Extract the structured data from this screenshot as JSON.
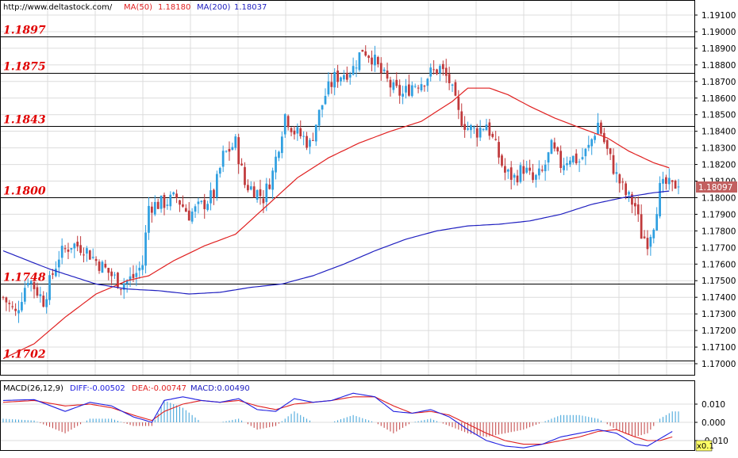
{
  "header": {
    "url": "http://www.deltastock.com/",
    "ma50_label": "MA(50)",
    "ma50_value": "1.18180",
    "ma200_label": "MA(200)",
    "ma200_value": "1.18037"
  },
  "macd_header": {
    "name": "MACD(26,12,9)",
    "diff": "DIFF:-0.00502",
    "dea": "DEA:-0.00747",
    "macd": "MACD:0.00490"
  },
  "colors": {
    "bull": "#2f9fe0",
    "bear": "#c0393b",
    "ma50": "#e02020",
    "ma200": "#2020c0",
    "level_text": "#e00000",
    "grid": "#dcdcdc",
    "price_box": "#c26060",
    "macd_diff": "#2020e0",
    "macd_dea": "#e02020"
  },
  "chart_data": [
    {
      "type": "candlestick",
      "title": "",
      "y_ticks": [
        "1.19100",
        "1.19000",
        "1.18900",
        "1.18800",
        "1.18700",
        "1.18600",
        "1.18500",
        "1.18400",
        "1.18300",
        "1.18200",
        "1.18100",
        "1.18000",
        "1.17900",
        "1.17800",
        "1.17700",
        "1.17600",
        "1.17500",
        "1.17400",
        "1.17300",
        "1.17200",
        "1.17100",
        "1.17000"
      ],
      "ylim": [
        1.1695,
        1.1915
      ],
      "current_price": "1.18097",
      "levels": [
        {
          "value": 1.1897,
          "label": "1.1897"
        },
        {
          "value": 1.1875,
          "label": "1.1875"
        },
        {
          "value": 1.1843,
          "label": "1.1843"
        },
        {
          "value": 1.18,
          "label": "1.1800"
        },
        {
          "value": 1.1748,
          "label": "1.1748"
        },
        {
          "value": 1.1702,
          "label": "1.1702"
        }
      ],
      "anchors_close": [
        [
          0,
          1.174
        ],
        [
          4,
          1.173
        ],
        [
          8,
          1.1752
        ],
        [
          13,
          1.1738
        ],
        [
          18,
          1.1765
        ],
        [
          22,
          1.1772
        ],
        [
          26,
          1.177
        ],
        [
          30,
          1.1762
        ],
        [
          34,
          1.1755
        ],
        [
          38,
          1.1748
        ],
        [
          42,
          1.1752
        ],
        [
          45,
          1.176
        ],
        [
          47,
          1.1795
        ],
        [
          52,
          1.1797
        ],
        [
          56,
          1.18
        ],
        [
          60,
          1.179
        ],
        [
          64,
          1.1795
        ],
        [
          68,
          1.1802
        ],
        [
          71,
          1.1825
        ],
        [
          75,
          1.1833
        ],
        [
          78,
          1.1808
        ],
        [
          81,
          1.1805
        ],
        [
          84,
          1.18
        ],
        [
          87,
          1.1815
        ],
        [
          91,
          1.185
        ],
        [
          94,
          1.184
        ],
        [
          97,
          1.1836
        ],
        [
          99,
          1.1832
        ],
        [
          101,
          1.1845
        ],
        [
          104,
          1.1862
        ],
        [
          107,
          1.1872
        ],
        [
          110,
          1.1875
        ],
        [
          113,
          1.1878
        ],
        [
          116,
          1.189
        ],
        [
          119,
          1.1885
        ],
        [
          122,
          1.1875
        ],
        [
          126,
          1.1865
        ],
        [
          129,
          1.1862
        ],
        [
          132,
          1.1868
        ],
        [
          135,
          1.187
        ],
        [
          138,
          1.1875
        ],
        [
          141,
          1.1878
        ],
        [
          144,
          1.187
        ],
        [
          147,
          1.185
        ],
        [
          150,
          1.1842
        ],
        [
          153,
          1.184
        ],
        [
          156,
          1.1845
        ],
        [
          159,
          1.183
        ],
        [
          162,
          1.1815
        ],
        [
          165,
          1.1812
        ],
        [
          168,
          1.1818
        ],
        [
          171,
          1.181
        ],
        [
          174,
          1.1815
        ],
        [
          177,
          1.183
        ],
        [
          180,
          1.182
        ],
        [
          183,
          1.1825
        ],
        [
          186,
          1.1822
        ],
        [
          189,
          1.183
        ],
        [
          192,
          1.1845
        ],
        [
          195,
          1.1828
        ],
        [
          198,
          1.1813
        ],
        [
          201,
          1.1802
        ],
        [
          204,
          1.1795
        ],
        [
          206,
          1.1778
        ],
        [
          208,
          1.1774
        ],
        [
          210,
          1.1785
        ],
        [
          212,
          1.1805
        ],
        [
          214,
          1.1808
        ],
        [
          216,
          1.1806
        ],
        [
          218,
          1.181
        ]
      ],
      "ma50_points": [
        [
          0,
          1.1703
        ],
        [
          10,
          1.1712
        ],
        [
          20,
          1.1728
        ],
        [
          30,
          1.1742
        ],
        [
          40,
          1.175
        ],
        [
          47,
          1.1753
        ],
        [
          55,
          1.1762
        ],
        [
          65,
          1.1771
        ],
        [
          75,
          1.1778
        ],
        [
          85,
          1.1795
        ],
        [
          95,
          1.1812
        ],
        [
          105,
          1.1824
        ],
        [
          115,
          1.1833
        ],
        [
          125,
          1.184
        ],
        [
          135,
          1.1846
        ],
        [
          145,
          1.1858
        ],
        [
          150,
          1.1866
        ],
        [
          157,
          1.1866
        ],
        [
          163,
          1.1862
        ],
        [
          170,
          1.1855
        ],
        [
          178,
          1.1848
        ],
        [
          185,
          1.1843
        ],
        [
          195,
          1.1836
        ],
        [
          202,
          1.1828
        ],
        [
          210,
          1.1821
        ],
        [
          215,
          1.1818
        ]
      ],
      "ma200_points": [
        [
          0,
          1.1768
        ],
        [
          15,
          1.1757
        ],
        [
          30,
          1.1748
        ],
        [
          40,
          1.1745
        ],
        [
          50,
          1.1744
        ],
        [
          60,
          1.1742
        ],
        [
          70,
          1.1743
        ],
        [
          80,
          1.1746
        ],
        [
          90,
          1.1748
        ],
        [
          100,
          1.1753
        ],
        [
          110,
          1.176
        ],
        [
          120,
          1.1768
        ],
        [
          130,
          1.1775
        ],
        [
          140,
          1.178
        ],
        [
          150,
          1.1783
        ],
        [
          160,
          1.1784
        ],
        [
          170,
          1.1786
        ],
        [
          180,
          1.179
        ],
        [
          190,
          1.1796
        ],
        [
          200,
          1.18
        ],
        [
          210,
          1.1803
        ],
        [
          215,
          1.1804
        ]
      ],
      "n_candles": 219
    },
    {
      "type": "macd",
      "y_ticks": [
        "0.010",
        "0.000",
        "-0.010"
      ],
      "ylim": [
        -0.0145,
        0.0135
      ],
      "scale_label": "x0.1",
      "diff_points": [
        [
          0,
          0.012
        ],
        [
          10,
          0.0125
        ],
        [
          20,
          0.006
        ],
        [
          28,
          0.011
        ],
        [
          35,
          0.009
        ],
        [
          42,
          0.003
        ],
        [
          48,
          0.0
        ],
        [
          52,
          0.012
        ],
        [
          58,
          0.014
        ],
        [
          64,
          0.012
        ],
        [
          70,
          0.011
        ],
        [
          76,
          0.013
        ],
        [
          82,
          0.007
        ],
        [
          88,
          0.006
        ],
        [
          94,
          0.013
        ],
        [
          100,
          0.011
        ],
        [
          106,
          0.012
        ],
        [
          113,
          0.016
        ],
        [
          120,
          0.014
        ],
        [
          126,
          0.006
        ],
        [
          132,
          0.005
        ],
        [
          138,
          0.007
        ],
        [
          144,
          0.003
        ],
        [
          150,
          -0.004
        ],
        [
          156,
          -0.01
        ],
        [
          162,
          -0.013
        ],
        [
          168,
          -0.014
        ],
        [
          174,
          -0.012
        ],
        [
          180,
          -0.008
        ],
        [
          186,
          -0.006
        ],
        [
          192,
          -0.004
        ],
        [
          198,
          -0.006
        ],
        [
          204,
          -0.012
        ],
        [
          208,
          -0.013
        ],
        [
          212,
          -0.009
        ],
        [
          216,
          -0.005
        ]
      ],
      "dea_points": [
        [
          0,
          0.011
        ],
        [
          10,
          0.012
        ],
        [
          20,
          0.009
        ],
        [
          28,
          0.01
        ],
        [
          35,
          0.008
        ],
        [
          42,
          0.004
        ],
        [
          48,
          0.001
        ],
        [
          52,
          0.006
        ],
        [
          58,
          0.01
        ],
        [
          64,
          0.012
        ],
        [
          70,
          0.011
        ],
        [
          76,
          0.012
        ],
        [
          82,
          0.009
        ],
        [
          88,
          0.007
        ],
        [
          94,
          0.01
        ],
        [
          100,
          0.011
        ],
        [
          106,
          0.012
        ],
        [
          113,
          0.014
        ],
        [
          120,
          0.014
        ],
        [
          126,
          0.009
        ],
        [
          132,
          0.005
        ],
        [
          138,
          0.006
        ],
        [
          144,
          0.004
        ],
        [
          150,
          -0.001
        ],
        [
          156,
          -0.006
        ],
        [
          162,
          -0.01
        ],
        [
          168,
          -0.012
        ],
        [
          174,
          -0.012
        ],
        [
          180,
          -0.01
        ],
        [
          186,
          -0.008
        ],
        [
          192,
          -0.005
        ],
        [
          198,
          -0.004
        ],
        [
          204,
          -0.008
        ],
        [
          208,
          -0.01
        ],
        [
          212,
          -0.01
        ],
        [
          216,
          -0.008
        ]
      ]
    }
  ]
}
